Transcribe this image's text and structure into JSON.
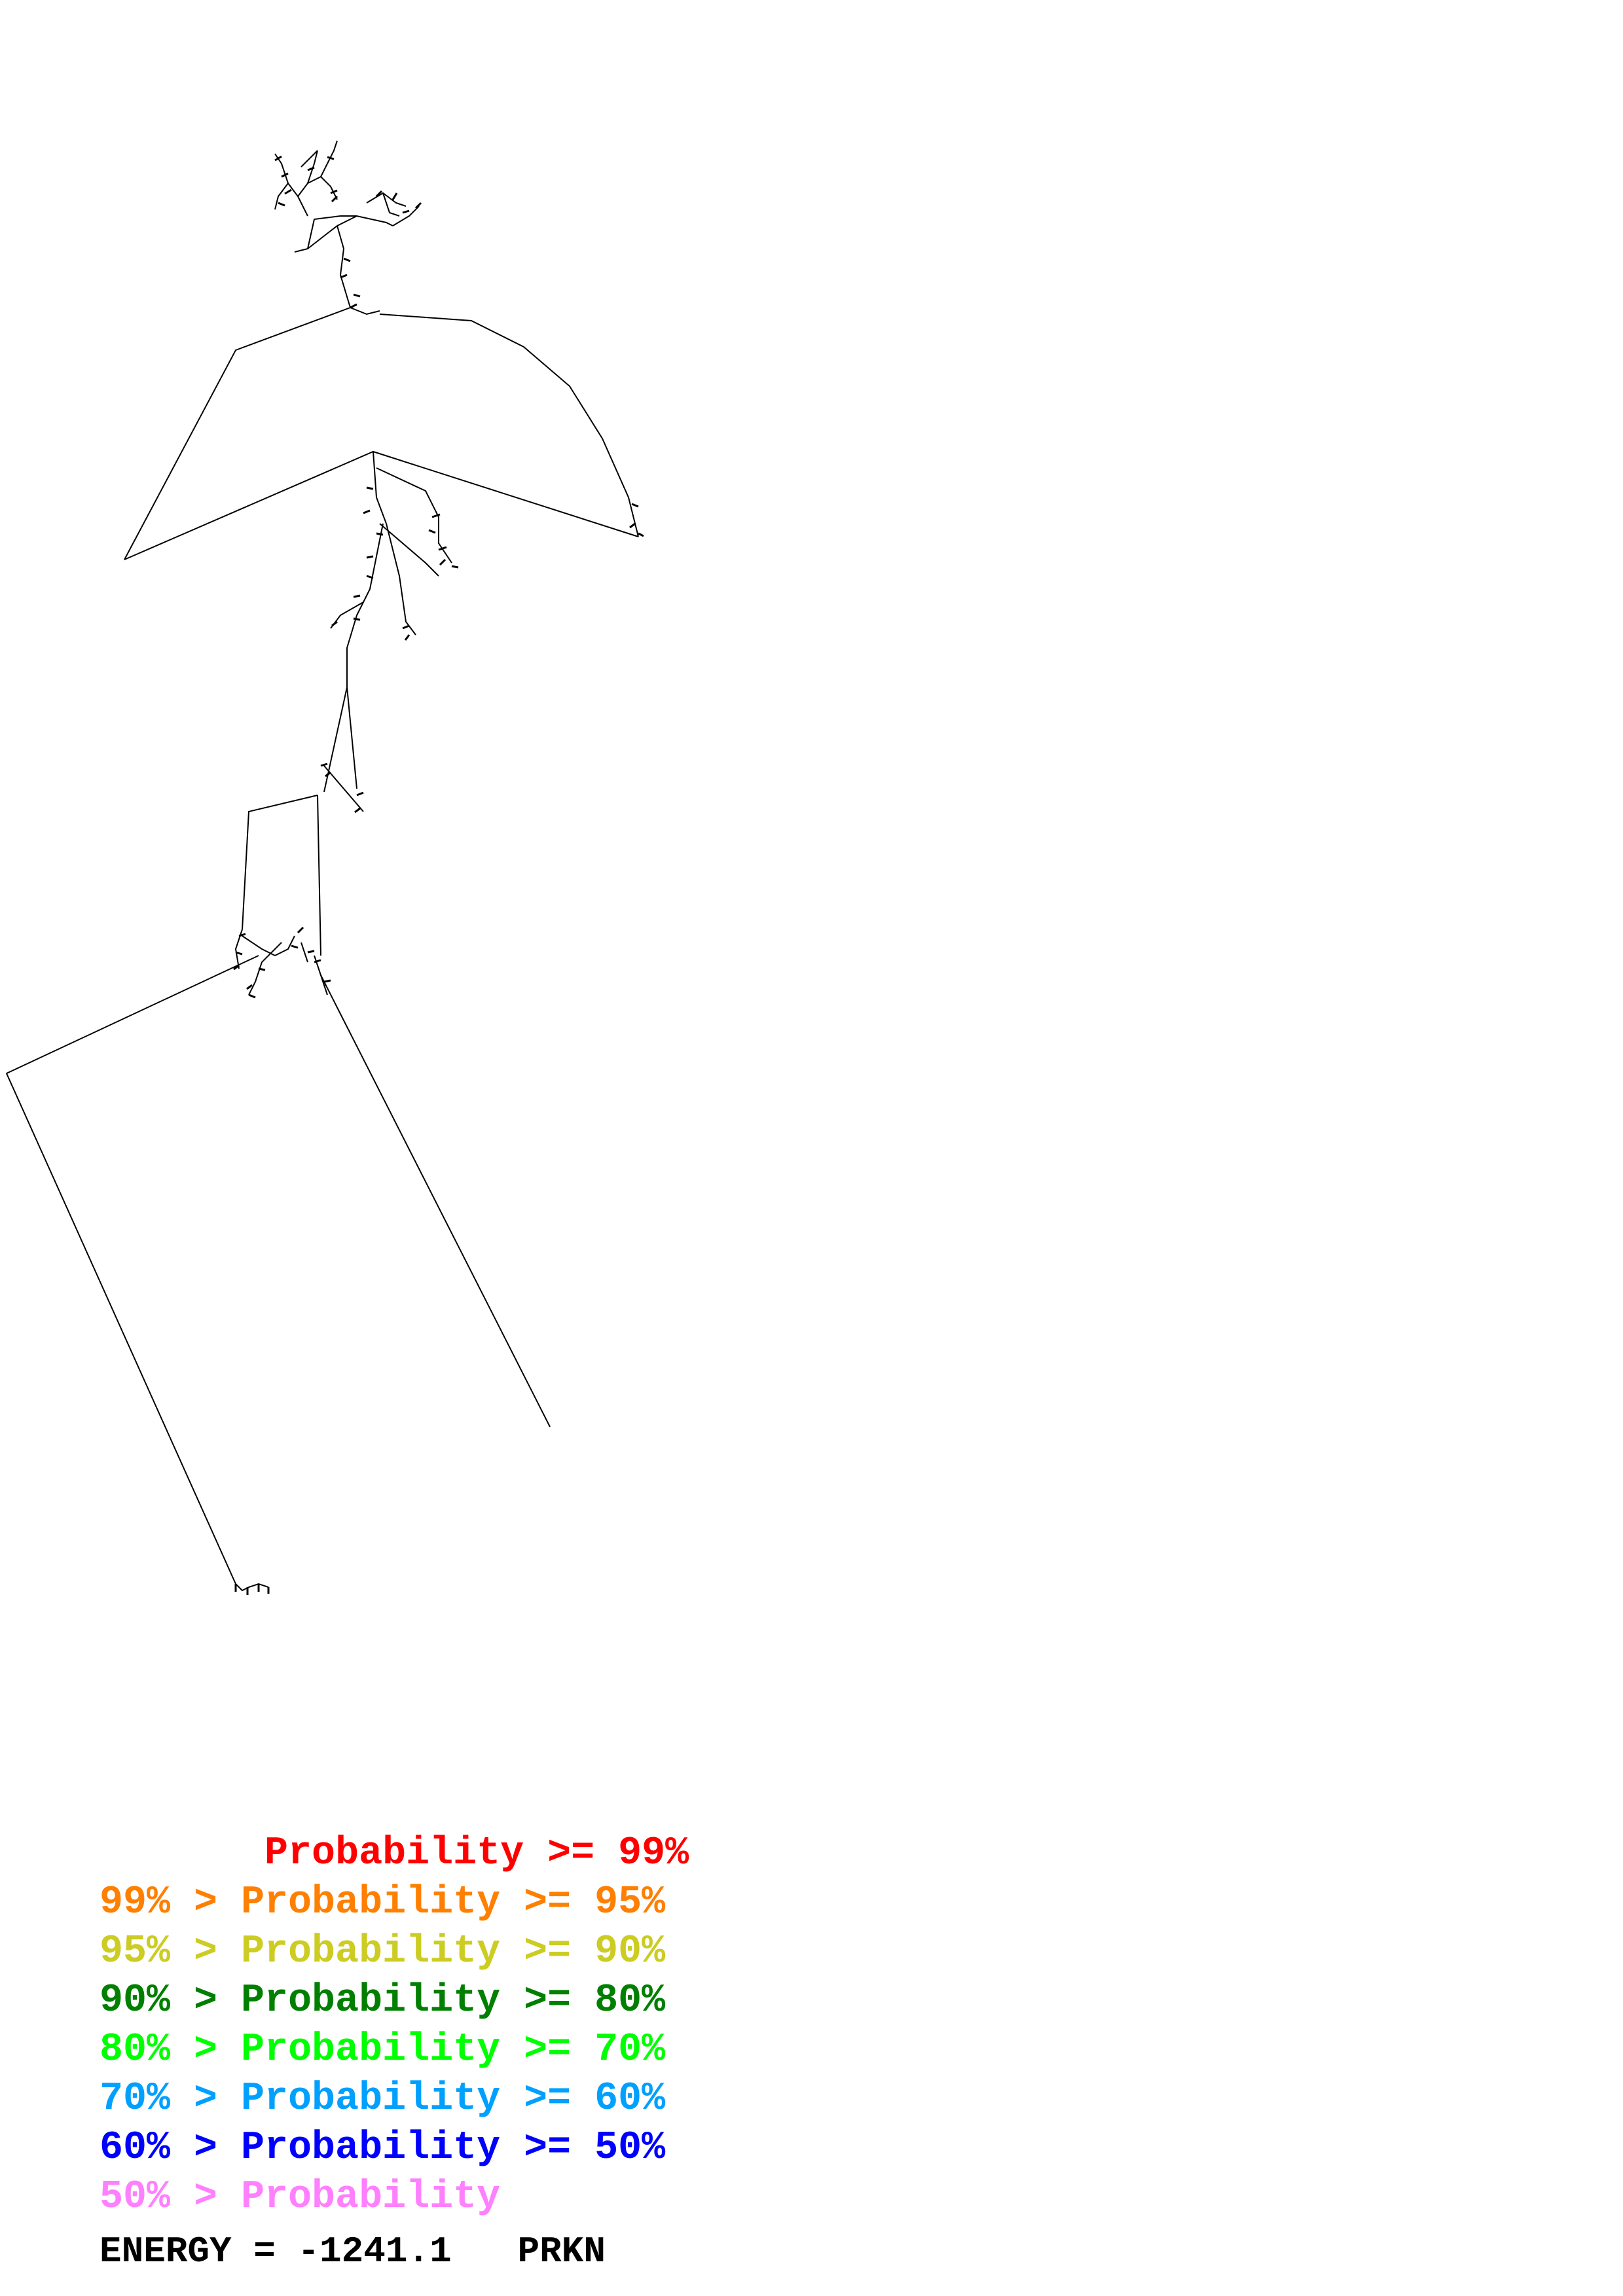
{
  "legend": [
    {
      "prefix": "       ",
      "text": "Probability >= 99%",
      "color": "#ff0000"
    },
    {
      "prefix": "",
      "text": "99% > Probability >= 95%",
      "color": "#ff7f00"
    },
    {
      "prefix": "",
      "text": "95% > Probability >= 90%",
      "color": "#cccc22"
    },
    {
      "prefix": "",
      "text": "90% > Probability >= 80%",
      "color": "#007f00"
    },
    {
      "prefix": "",
      "text": "80% > Probability >= 70%",
      "color": "#00ff00"
    },
    {
      "prefix": "",
      "text": "70% > Probability >= 60%",
      "color": "#00a0ff"
    },
    {
      "prefix": "",
      "text": "60% > Probability >= 50%",
      "color": "#0000ff"
    },
    {
      "prefix": "",
      "text": "50% > Probability",
      "color": "#ff80ff"
    }
  ],
  "footer": {
    "energy_label": "ENERGY = ",
    "energy_value": "-1241.1",
    "name": "PRKN"
  },
  "colors": {
    "backbone": "#000000"
  }
}
